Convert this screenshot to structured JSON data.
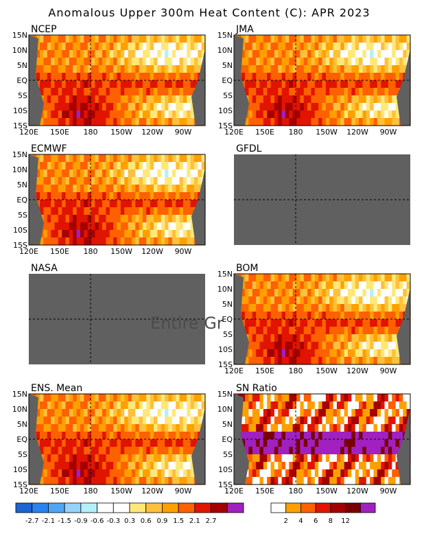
{
  "title": "Anomalous Upper 300m Heat Content (C): APR 2023",
  "x_ticks": [
    "120E",
    "150E",
    "180",
    "150W",
    "120W",
    "90W"
  ],
  "y_ticks": [
    "15N",
    "10N",
    "5N",
    "EQ",
    "5S",
    "10S",
    "15S"
  ],
  "colors": {
    "land": "#606060",
    "missing": "#606060",
    "ref_line": "#000000"
  },
  "chart_data": [
    {
      "type": "heatmap",
      "title": "NCEP",
      "x_ticks": [
        "120E",
        "150E",
        "180",
        "150W",
        "120W",
        "90W"
      ],
      "y_ticks": [
        "15N",
        "10N",
        "5N",
        "EQ",
        "5S",
        "10S",
        "15S"
      ],
      "available": true,
      "colorbar": "anomaly"
    },
    {
      "type": "heatmap",
      "title": "JMA",
      "x_ticks": [
        "120E",
        "150E",
        "180",
        "150W",
        "120W",
        "90W"
      ],
      "y_ticks": [
        "15N",
        "10N",
        "5N",
        "EQ",
        "5S",
        "10S",
        "15S"
      ],
      "available": true,
      "colorbar": "anomaly"
    },
    {
      "type": "heatmap",
      "title": "ECMWF",
      "x_ticks": [
        "120E",
        "150E",
        "180",
        "150W",
        "120W",
        "90W"
      ],
      "y_ticks": [
        "15N",
        "10N",
        "5N",
        "EQ",
        "5S",
        "10S",
        "15S"
      ],
      "available": true,
      "colorbar": "anomaly"
    },
    {
      "type": "heatmap",
      "title": "GFDL",
      "available": false,
      "colorbar": "anomaly"
    },
    {
      "type": "heatmap",
      "title": "NASA",
      "available": false,
      "note": "Entire Gr",
      "colorbar": "anomaly"
    },
    {
      "type": "heatmap",
      "title": "BOM",
      "x_ticks": [
        "120E",
        "150E",
        "180",
        "150W",
        "120W",
        "90W"
      ],
      "y_ticks": [
        "15N",
        "10N",
        "5N",
        "EQ",
        "5S",
        "10S",
        "15S"
      ],
      "available": true,
      "colorbar": "anomaly"
    },
    {
      "type": "heatmap",
      "title": "ENS. Mean",
      "x_ticks": [
        "120E",
        "150E",
        "180",
        "150W",
        "120W",
        "90W"
      ],
      "y_ticks": [
        "15N",
        "10N",
        "5N",
        "EQ",
        "5S",
        "10S",
        "15S"
      ],
      "available": true,
      "colorbar": "anomaly"
    },
    {
      "type": "heatmap",
      "title": "SN Ratio",
      "x_ticks": [
        "120E",
        "150E",
        "180",
        "150W",
        "120W",
        "90W"
      ],
      "y_ticks": [
        "15N",
        "10N",
        "5N",
        "EQ",
        "5S",
        "10S",
        "15S"
      ],
      "available": true,
      "colorbar": "snr"
    }
  ],
  "colorbars": {
    "anomaly": {
      "colors": [
        "#1e64d2",
        "#2882f0",
        "#50a5f5",
        "#96d2fa",
        "#b4f0fa",
        "#ffffff",
        "#ffffff",
        "#ffe878",
        "#ffc03c",
        "#ffa000",
        "#ff6000",
        "#e11400",
        "#a50000",
        "#a020c0"
      ],
      "labels": [
        "-2.7",
        "-2.1",
        "-1.5",
        "-0.9",
        "-0.6",
        "-0.3",
        "0.3",
        "0.6",
        "0.9",
        "1.5",
        "2.1",
        "2.7"
      ]
    },
    "snr": {
      "colors": [
        "#ffffff",
        "#ffa000",
        "#ff6000",
        "#e11400",
        "#a50000",
        "#7a0000",
        "#a020c0"
      ],
      "labels": [
        "2",
        "4",
        "6",
        "8",
        "12"
      ]
    }
  }
}
